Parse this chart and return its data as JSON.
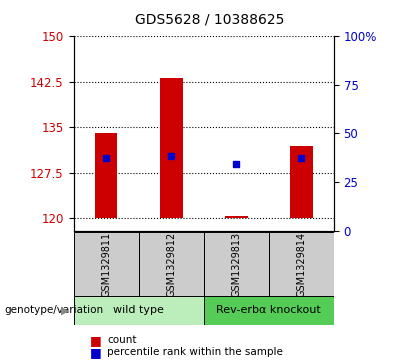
{
  "title": "GDS5628 / 10388625",
  "samples": [
    "GSM1329811",
    "GSM1329812",
    "GSM1329813",
    "GSM1329814"
  ],
  "bar_bottoms": [
    120.0,
    120.0,
    120.0,
    120.0
  ],
  "bar_tops": [
    134.0,
    143.2,
    120.4,
    132.0
  ],
  "blue_dots": [
    130.0,
    130.3,
    129.0,
    130.0
  ],
  "ylim_left": [
    118,
    150
  ],
  "yticks_left": [
    120,
    127.5,
    135,
    142.5,
    150
  ],
  "ylim_right": [
    0,
    100
  ],
  "yticks_right": [
    0,
    25,
    50,
    75,
    100
  ],
  "bar_color": "#cc0000",
  "dot_color": "#0000cc",
  "group1_label": "wild type",
  "group2_label": "Rev-erbα knockout",
  "group1_color": "#bbeebb",
  "group2_color": "#55cc55",
  "genotype_label": "genotype/variation",
  "legend_count_label": "count",
  "legend_percentile_label": "percentile rank within the sample",
  "grid_color": "#000000",
  "tick_label_color_left": "#cc0000",
  "tick_label_color_right": "#0000cc",
  "background_sample": "#cccccc",
  "bar_width": 0.35
}
